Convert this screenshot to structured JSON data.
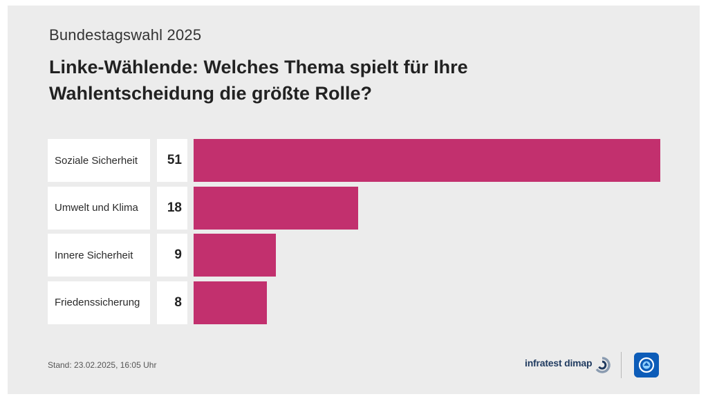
{
  "header": {
    "kicker": "Bundestagswahl 2025",
    "title": "Linke-Wählende: Welches Thema spielt für Ihre Wahlentscheidung die größte Rolle?"
  },
  "chart_data": {
    "type": "bar",
    "orientation": "horizontal",
    "categories": [
      "Soziale Sicherheit",
      "Umwelt und Klima",
      "Innere Sicherheit",
      "Friedenssicherung"
    ],
    "values": [
      51,
      18,
      9,
      8
    ],
    "colors": {
      "bar": "#c2306e",
      "background": "#ececec"
    }
  },
  "footer": {
    "stand": "Stand:  23.02.2025, 16:05 Uhr",
    "source": "infratest dimap"
  }
}
